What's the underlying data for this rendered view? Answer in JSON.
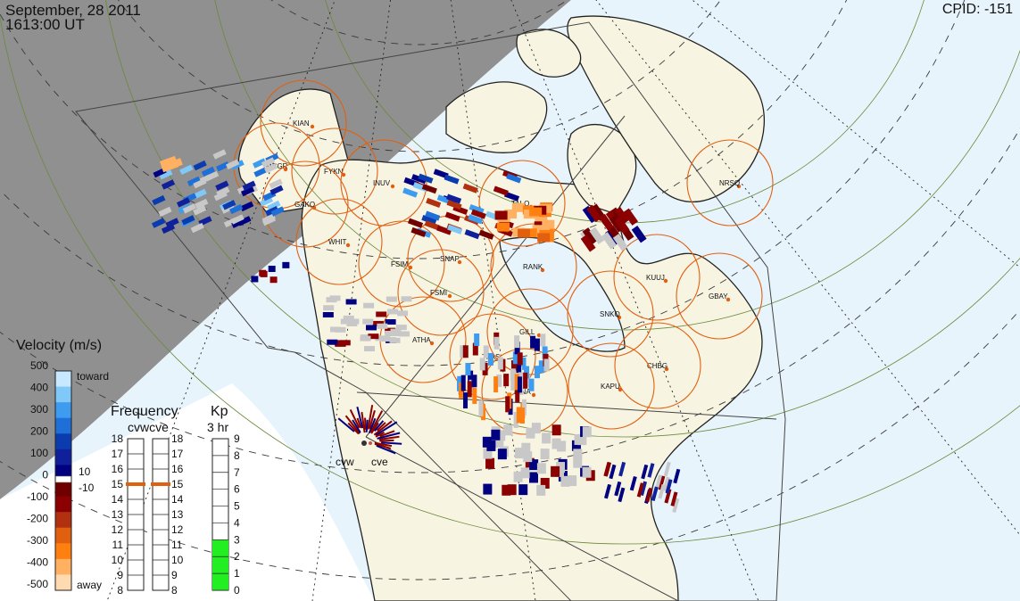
{
  "header": {
    "date": "September, 28 2011",
    "time": "1613:00 UT",
    "cpid": "CPID:  -151"
  },
  "legend": {
    "velocity_title": "Velocity (m/s)",
    "velocity_ticks": [
      "500",
      "400",
      "300",
      "200",
      "100",
      "0",
      "-100",
      "-200",
      "-300",
      "-400",
      "-500"
    ],
    "toward": "toward",
    "away": "away",
    "threshold_pos": "10",
    "threshold_neg": "-10",
    "colors": [
      "#ffd9b0",
      "#ffb060",
      "#ff8010",
      "#e06010",
      "#b03010",
      "#8b0000",
      "#700000",
      "#000080",
      "#10209a",
      "#0a3cb0",
      "#1e6fd8",
      "#3d9cf0",
      "#80c8f8",
      "#c8e8ff"
    ]
  },
  "frequency": {
    "title": "Frequency",
    "stations": "cvwcve",
    "ticks": [
      "18",
      "17",
      "16",
      "15",
      "14",
      "13",
      "12",
      "11",
      "10",
      "9",
      "8"
    ],
    "cvw_mhz": 15,
    "cve_mhz": 15
  },
  "kp": {
    "title": "Kp",
    "subtitle": "3 hr",
    "ticks": [
      "9",
      "8",
      "7",
      "6",
      "5",
      "4",
      "3",
      "2",
      "1",
      "0"
    ],
    "value": 3,
    "color": "#22ee22"
  },
  "map": {
    "night_color": "#909090",
    "ocean_color": "#e8f4fc",
    "land_color": "#f8f4e2",
    "fov_color": "#e06010",
    "radar_names": [
      "cvw",
      "cve"
    ],
    "stations": [
      "KIAN",
      "MCGR",
      "FYKN",
      "GAKO",
      "INUV",
      "WHIT",
      "TALO",
      "FSIM",
      "SNAP",
      "FSMI",
      "RANK",
      "NRSQ",
      "KUUJ",
      "GBAY",
      "SNKQ",
      "ATHA",
      "TPAS",
      "GILL",
      "CHBG",
      "KAPU",
      "PINA"
    ]
  }
}
